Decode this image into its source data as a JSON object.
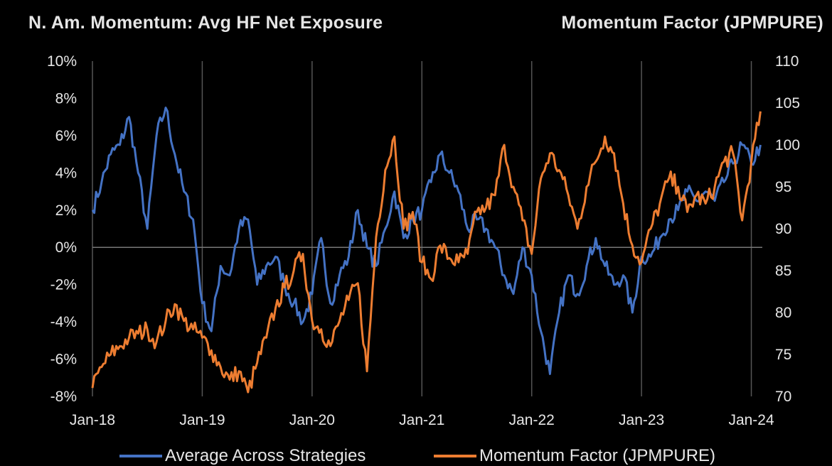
{
  "header": {
    "left_title": "N. Am. Momentum: Avg HF Net Exposure",
    "right_title": "Momentum Factor (JPMPURE)"
  },
  "chart_data": {
    "type": "line",
    "title": "N. Am. Momentum: Avg HF Net Exposure",
    "y_left": {
      "label": "",
      "range": [
        -8,
        10
      ],
      "ticks": [
        "10%",
        "8%",
        "6%",
        "4%",
        "2%",
        "0%",
        "-2%",
        "-4%",
        "-6%",
        "-8%"
      ]
    },
    "y_right": {
      "label": "Momentum Factor (JPMPURE)",
      "range": [
        70,
        110
      ],
      "ticks": [
        "110",
        "105",
        "100",
        "95",
        "90",
        "85",
        "80",
        "75",
        "70"
      ]
    },
    "x_ticks": [
      "Jan-18",
      "Jan-19",
      "Jan-20",
      "Jan-21",
      "Jan-22",
      "Jan-23",
      "Jan-24"
    ],
    "grid": "vertical",
    "legend_position": "bottom",
    "series": [
      {
        "name": "Average Across Strategies",
        "axis": "left",
        "color": "#4472C4",
        "points": [
          [
            "2018-01",
            2.0
          ],
          [
            "2018-02",
            3.5
          ],
          [
            "2018-03",
            5.0
          ],
          [
            "2018-04",
            5.5
          ],
          [
            "2018-05",
            7.0
          ],
          [
            "2018-06",
            4.0
          ],
          [
            "2018-07",
            1.0
          ],
          [
            "2018-08",
            6.0
          ],
          [
            "2018-09",
            7.5
          ],
          [
            "2018-10",
            5.0
          ],
          [
            "2018-11",
            3.0
          ],
          [
            "2018-12",
            1.5
          ],
          [
            "2019-01",
            -3.0
          ],
          [
            "2019-02",
            -4.5
          ],
          [
            "2019-03",
            -1.0
          ],
          [
            "2019-04",
            -1.5
          ],
          [
            "2019-05",
            1.0
          ],
          [
            "2019-06",
            1.5
          ],
          [
            "2019-07",
            -2.0
          ],
          [
            "2019-08",
            -1.0
          ],
          [
            "2019-09",
            -0.5
          ],
          [
            "2019-10",
            -2.0
          ],
          [
            "2019-11",
            -3.0
          ],
          [
            "2019-12",
            -4.0
          ],
          [
            "2020-01",
            -2.5
          ],
          [
            "2020-02",
            0.5
          ],
          [
            "2020-03",
            -3.0
          ],
          [
            "2020-04",
            -1.5
          ],
          [
            "2020-05",
            -0.5
          ],
          [
            "2020-06",
            2.0
          ],
          [
            "2020-07",
            0.0
          ],
          [
            "2020-08",
            -1.0
          ],
          [
            "2020-09",
            1.0
          ],
          [
            "2020-10",
            3.0
          ],
          [
            "2020-11",
            0.5
          ],
          [
            "2020-12",
            1.5
          ],
          [
            "2021-01",
            2.0
          ],
          [
            "2021-02",
            3.5
          ],
          [
            "2021-03",
            5.0
          ],
          [
            "2021-04",
            4.0
          ],
          [
            "2021-05",
            3.0
          ],
          [
            "2021-06",
            1.0
          ],
          [
            "2021-07",
            1.5
          ],
          [
            "2021-08",
            1.0
          ],
          [
            "2021-09",
            0.0
          ],
          [
            "2021-10",
            -1.5
          ],
          [
            "2021-11",
            -2.5
          ],
          [
            "2021-12",
            0.0
          ],
          [
            "2022-01",
            -1.5
          ],
          [
            "2022-02",
            -4.5
          ],
          [
            "2022-03",
            -6.8
          ],
          [
            "2022-04",
            -3.5
          ],
          [
            "2022-05",
            -1.5
          ],
          [
            "2022-06",
            -2.5
          ],
          [
            "2022-07",
            -1.0
          ],
          [
            "2022-08",
            0.5
          ],
          [
            "2022-09",
            -1.0
          ],
          [
            "2022-10",
            -2.0
          ],
          [
            "2022-11",
            -1.5
          ],
          [
            "2022-12",
            -3.5
          ],
          [
            "2023-01",
            -0.5
          ],
          [
            "2023-02",
            -0.5
          ],
          [
            "2023-03",
            0.5
          ],
          [
            "2023-04",
            1.5
          ],
          [
            "2023-05",
            2.0
          ],
          [
            "2023-06",
            3.0
          ],
          [
            "2023-07",
            2.5
          ],
          [
            "2023-08",
            3.0
          ],
          [
            "2023-09",
            2.5
          ],
          [
            "2023-10",
            3.5
          ],
          [
            "2023-11",
            4.5
          ],
          [
            "2023-12",
            5.5
          ],
          [
            "2024-01",
            4.5
          ],
          [
            "2024-02",
            5.5
          ]
        ]
      },
      {
        "name": "Momentum Factor (JPMPURE)",
        "axis": "right",
        "color": "#ED7D31",
        "points": [
          [
            "2018-01",
            71
          ],
          [
            "2018-02",
            73.5
          ],
          [
            "2018-03",
            75
          ],
          [
            "2018-04",
            76
          ],
          [
            "2018-05",
            77
          ],
          [
            "2018-06",
            77.5
          ],
          [
            "2018-07",
            78
          ],
          [
            "2018-08",
            76.5
          ],
          [
            "2018-09",
            79
          ],
          [
            "2018-10",
            81
          ],
          [
            "2018-11",
            79
          ],
          [
            "2018-12",
            78
          ],
          [
            "2019-01",
            77
          ],
          [
            "2019-02",
            75.5
          ],
          [
            "2019-03",
            73.5
          ],
          [
            "2019-04",
            72
          ],
          [
            "2019-05",
            73
          ],
          [
            "2019-06",
            70.5
          ],
          [
            "2019-07",
            74
          ],
          [
            "2019-08",
            77
          ],
          [
            "2019-09",
            80.5
          ],
          [
            "2019-10",
            83
          ],
          [
            "2019-11",
            85
          ],
          [
            "2019-12",
            87
          ],
          [
            "2020-01",
            79
          ],
          [
            "2020-02",
            78
          ],
          [
            "2020-03",
            76
          ],
          [
            "2020-04",
            79
          ],
          [
            "2020-05",
            81.5
          ],
          [
            "2020-06",
            83.5
          ],
          [
            "2020-07",
            73
          ],
          [
            "2020-08",
            89
          ],
          [
            "2020-09",
            97
          ],
          [
            "2020-10",
            101
          ],
          [
            "2020-11",
            90
          ],
          [
            "2020-12",
            92
          ],
          [
            "2021-01",
            86
          ],
          [
            "2021-02",
            84
          ],
          [
            "2021-03",
            88
          ],
          [
            "2021-04",
            86.5
          ],
          [
            "2021-05",
            86
          ],
          [
            "2021-06",
            87
          ],
          [
            "2021-07",
            92
          ],
          [
            "2021-08",
            92.5
          ],
          [
            "2021-09",
            94
          ],
          [
            "2021-10",
            100
          ],
          [
            "2021-11",
            95
          ],
          [
            "2021-12",
            91
          ],
          [
            "2022-01",
            87
          ],
          [
            "2022-02",
            96
          ],
          [
            "2022-03",
            99
          ],
          [
            "2022-04",
            97
          ],
          [
            "2022-05",
            94
          ],
          [
            "2022-06",
            90
          ],
          [
            "2022-07",
            95
          ],
          [
            "2022-08",
            98
          ],
          [
            "2022-09",
            101
          ],
          [
            "2022-10",
            99
          ],
          [
            "2022-11",
            93
          ],
          [
            "2022-12",
            88
          ],
          [
            "2023-01",
            86
          ],
          [
            "2023-02",
            90
          ],
          [
            "2023-03",
            93
          ],
          [
            "2023-04",
            96
          ],
          [
            "2023-05",
            95
          ],
          [
            "2023-06",
            92
          ],
          [
            "2023-07",
            94
          ],
          [
            "2023-08",
            93
          ],
          [
            "2023-09",
            95
          ],
          [
            "2023-10",
            98
          ],
          [
            "2023-11",
            99
          ],
          [
            "2023-12",
            91
          ],
          [
            "2024-01",
            98
          ],
          [
            "2024-02",
            104
          ]
        ]
      }
    ]
  }
}
